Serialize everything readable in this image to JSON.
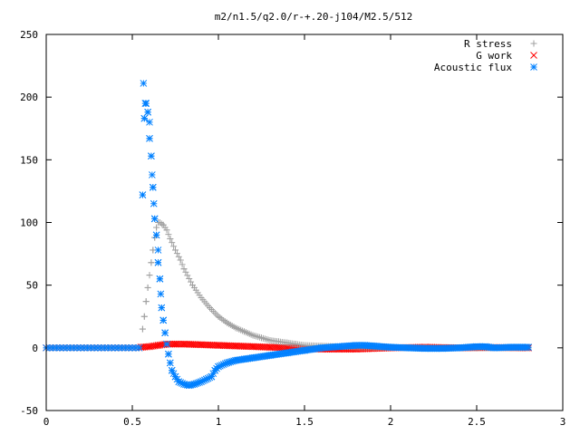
{
  "chart_data": {
    "type": "scatter",
    "title": "m2/n1.5/q2.0/r-+.20-j104/M2.5/512",
    "xlim": [
      0,
      3
    ],
    "ylim": [
      -50,
      250
    ],
    "xticks": [
      "0",
      "0.5",
      "1",
      "1.5",
      "2",
      "2.5",
      "3"
    ],
    "yticks": [
      "-50",
      "0",
      "50",
      "100",
      "150",
      "200",
      "250"
    ],
    "grid": false,
    "legend_position": "top-right",
    "series": [
      {
        "name": "R stress",
        "marker": "plus",
        "color": "#a0a0a0",
        "points": [
          [
            0.56,
            15
          ],
          [
            0.57,
            25
          ],
          [
            0.58,
            37
          ],
          [
            0.59,
            48
          ],
          [
            0.6,
            58
          ],
          [
            0.61,
            68
          ],
          [
            0.62,
            78
          ],
          [
            0.63,
            88
          ],
          [
            0.64,
            96
          ],
          [
            0.65,
            100
          ],
          [
            0.66,
            100
          ],
          [
            0.68,
            98
          ],
          [
            0.7,
            94
          ],
          [
            0.72,
            87
          ],
          [
            0.75,
            78
          ],
          [
            0.78,
            70
          ],
          [
            0.8,
            63
          ],
          [
            0.85,
            50
          ],
          [
            0.9,
            40
          ],
          [
            0.95,
            32
          ],
          [
            1.0,
            25
          ],
          [
            1.05,
            20
          ],
          [
            1.1,
            16
          ],
          [
            1.15,
            13
          ],
          [
            1.2,
            10
          ],
          [
            1.25,
            8
          ],
          [
            1.3,
            6
          ],
          [
            1.35,
            5
          ],
          [
            1.4,
            4
          ],
          [
            1.45,
            3
          ],
          [
            1.5,
            2
          ],
          [
            1.6,
            1.5
          ],
          [
            1.7,
            1
          ],
          [
            1.8,
            0.5
          ],
          [
            1.9,
            0.3
          ],
          [
            2.0,
            0.2
          ],
          [
            2.2,
            0.1
          ],
          [
            2.5,
            0
          ],
          [
            2.8,
            0
          ]
        ]
      },
      {
        "name": "G work",
        "marker": "cross",
        "color": "#ff0000",
        "points": [
          [
            0.55,
            0.5
          ],
          [
            0.6,
            1
          ],
          [
            0.65,
            2
          ],
          [
            0.7,
            3
          ],
          [
            0.75,
            3
          ],
          [
            0.8,
            3
          ],
          [
            0.9,
            2.5
          ],
          [
            1.0,
            2
          ],
          [
            1.1,
            1.5
          ],
          [
            1.2,
            1
          ],
          [
            1.3,
            0.5
          ],
          [
            1.4,
            0
          ],
          [
            1.5,
            -0.5
          ],
          [
            1.6,
            -1
          ],
          [
            1.7,
            -1
          ],
          [
            1.8,
            -1
          ],
          [
            1.9,
            -0.5
          ],
          [
            2.0,
            0
          ],
          [
            2.2,
            0.5
          ],
          [
            2.4,
            0
          ],
          [
            2.6,
            0.3
          ],
          [
            2.8,
            0
          ]
        ]
      },
      {
        "name": "Acoustic flux",
        "marker": "star",
        "color": "#0080ff",
        "points": [
          [
            0.56,
            122
          ],
          [
            0.565,
            211
          ],
          [
            0.57,
            183
          ],
          [
            0.575,
            195
          ],
          [
            0.58,
            195
          ],
          [
            0.59,
            188
          ],
          [
            0.6,
            180
          ],
          [
            0.6,
            167
          ],
          [
            0.61,
            153
          ],
          [
            0.615,
            138
          ],
          [
            0.62,
            128
          ],
          [
            0.625,
            115
          ],
          [
            0.63,
            103
          ],
          [
            0.64,
            90
          ],
          [
            0.65,
            78
          ],
          [
            0.65,
            68
          ],
          [
            0.66,
            55
          ],
          [
            0.665,
            43
          ],
          [
            0.67,
            32
          ],
          [
            0.68,
            22
          ],
          [
            0.69,
            12
          ],
          [
            0.7,
            3
          ],
          [
            0.71,
            -5
          ],
          [
            0.72,
            -12
          ],
          [
            0.73,
            -18
          ],
          [
            0.75,
            -23
          ],
          [
            0.77,
            -27
          ],
          [
            0.8,
            -29
          ],
          [
            0.83,
            -30
          ],
          [
            0.86,
            -29
          ],
          [
            0.9,
            -27
          ],
          [
            0.93,
            -25
          ],
          [
            0.96,
            -23
          ],
          [
            0.98,
            -18
          ],
          [
            1.0,
            -15
          ],
          [
            1.05,
            -12
          ],
          [
            1.1,
            -10
          ],
          [
            1.15,
            -9
          ],
          [
            1.2,
            -8
          ],
          [
            1.3,
            -6
          ],
          [
            1.4,
            -4
          ],
          [
            1.5,
            -2
          ],
          [
            1.6,
            0
          ],
          [
            1.7,
            1
          ],
          [
            1.8,
            2
          ],
          [
            1.85,
            2
          ],
          [
            1.9,
            1.5
          ],
          [
            2.0,
            0.5
          ],
          [
            2.1,
            0
          ],
          [
            2.2,
            -0.5
          ],
          [
            2.3,
            -0.5
          ],
          [
            2.4,
            0
          ],
          [
            2.5,
            1
          ],
          [
            2.55,
            1
          ],
          [
            2.6,
            0
          ],
          [
            2.7,
            0.5
          ],
          [
            2.8,
            0.5
          ]
        ]
      }
    ]
  }
}
